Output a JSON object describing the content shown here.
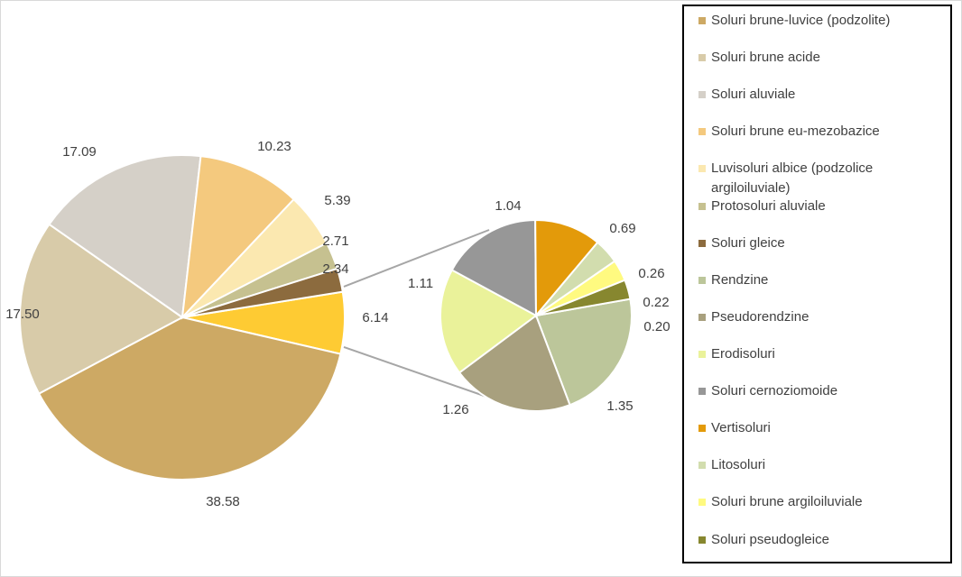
{
  "chart_data": {
    "type": "pie",
    "subtype": "pie-of-pie",
    "title": "",
    "slices": [
      {
        "label": "Soluri brune-luvice (podzolite)",
        "value": 38.58,
        "color": "#CDA964"
      },
      {
        "label": "Soluri brune acide",
        "value": 17.5,
        "color": "#D8CBA9"
      },
      {
        "label": "Soluri aluviale",
        "value": 17.09,
        "color": "#D5D0C8"
      },
      {
        "label": "Soluri brune eu-mezobazice",
        "value": 10.23,
        "color": "#F4C97E"
      },
      {
        "label": "Luvisoluri albice (podzolice argiloiluviale)",
        "value": 5.39,
        "color": "#FBE8B0"
      },
      {
        "label": "Protosoluri aluviale",
        "value": 2.71,
        "color": "#C6C190"
      },
      {
        "label": "Soluri gleice",
        "value": 2.34,
        "color": "#8C6B3E"
      },
      {
        "label": "Rendzine",
        "value": 1.35,
        "color": "#BCC69A"
      },
      {
        "label": "Pseudorendzine",
        "value": 1.26,
        "color": "#A8A07E"
      },
      {
        "label": "Erodisoluri",
        "value": 1.11,
        "color": "#EAF29A"
      },
      {
        "label": "Soluri cernoziomoide",
        "value": 1.04,
        "color": "#979797"
      },
      {
        "label": "Vertisoluri",
        "value": 0.69,
        "color": "#E39A0A"
      },
      {
        "label": "Litosoluri",
        "value": 0.26,
        "color": "#D2DDAE"
      },
      {
        "label": "Soluri brune argiloiluviale",
        "value": 0.22,
        "color": "#FFFA80"
      },
      {
        "label": "Soluri pseudogleice",
        "value": 0.2,
        "color": "#87872F"
      }
    ],
    "other_slice": {
      "label": "",
      "value": 6.14,
      "color": "#FECB33"
    },
    "legend_position": "right",
    "label_texts": {
      "main": [
        "38.58",
        "17.50",
        "17.09",
        "10.23",
        "5.39",
        "2.71",
        "2.34"
      ],
      "other": "6.14",
      "secondary": [
        "1.35",
        "1.26",
        "1.11",
        "1.04",
        "0.69",
        "0.26",
        "0.22",
        "0.20"
      ]
    }
  }
}
